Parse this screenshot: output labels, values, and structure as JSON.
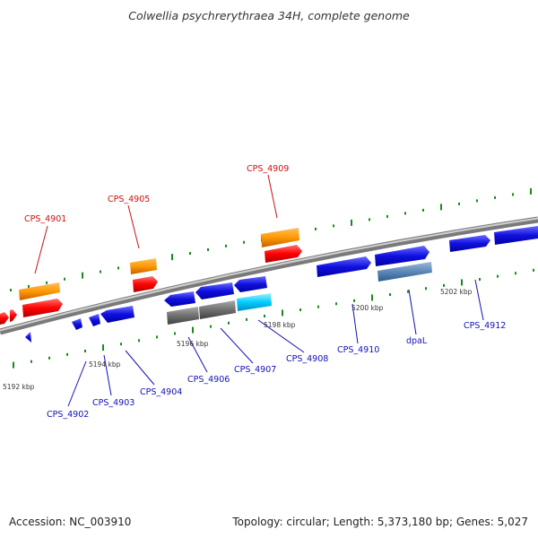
{
  "title": "Colwellia psychrerythraea 34H, complete genome",
  "accession": "Accession: NC_003910",
  "summary": "Topology: circular; Length: 5,373,180 bp; Genes: 5,027",
  "colors": {
    "backbone": "#8c8c8c",
    "tick": "#1a8a1a",
    "label_top": "#cc1111",
    "label_bottom": "#1111bb",
    "kbp_text": "#333333"
  },
  "kbp_labels": [
    "5192 kbp",
    "5194 kbp",
    "5196 kbp",
    "5198 kbp",
    "5200 kbp",
    "5202 kbp"
  ],
  "genes_top": [
    {
      "name": "CPS_4901",
      "color": "#ff0000"
    },
    {
      "name": "CPS_4905",
      "color": "#ff0000"
    },
    {
      "name": "CPS_4909",
      "color": "#ff0000"
    }
  ],
  "genes_bottom": [
    {
      "name": "CPS_4902",
      "color": "#0000ee"
    },
    {
      "name": "CPS_4903",
      "color": "#0000ee"
    },
    {
      "name": "CPS_4904",
      "color": "#0000ee"
    },
    {
      "name": "CPS_4906",
      "color": "#0000ee"
    },
    {
      "name": "CPS_4907",
      "color": "#0000ee"
    },
    {
      "name": "CPS_4908",
      "color": "#0000ee"
    },
    {
      "name": "CPS_4910",
      "color": "#0000ee"
    },
    {
      "name": "dpaL",
      "color": "#0000ee"
    },
    {
      "name": "CPS_4912",
      "color": "#0000ee"
    }
  ]
}
